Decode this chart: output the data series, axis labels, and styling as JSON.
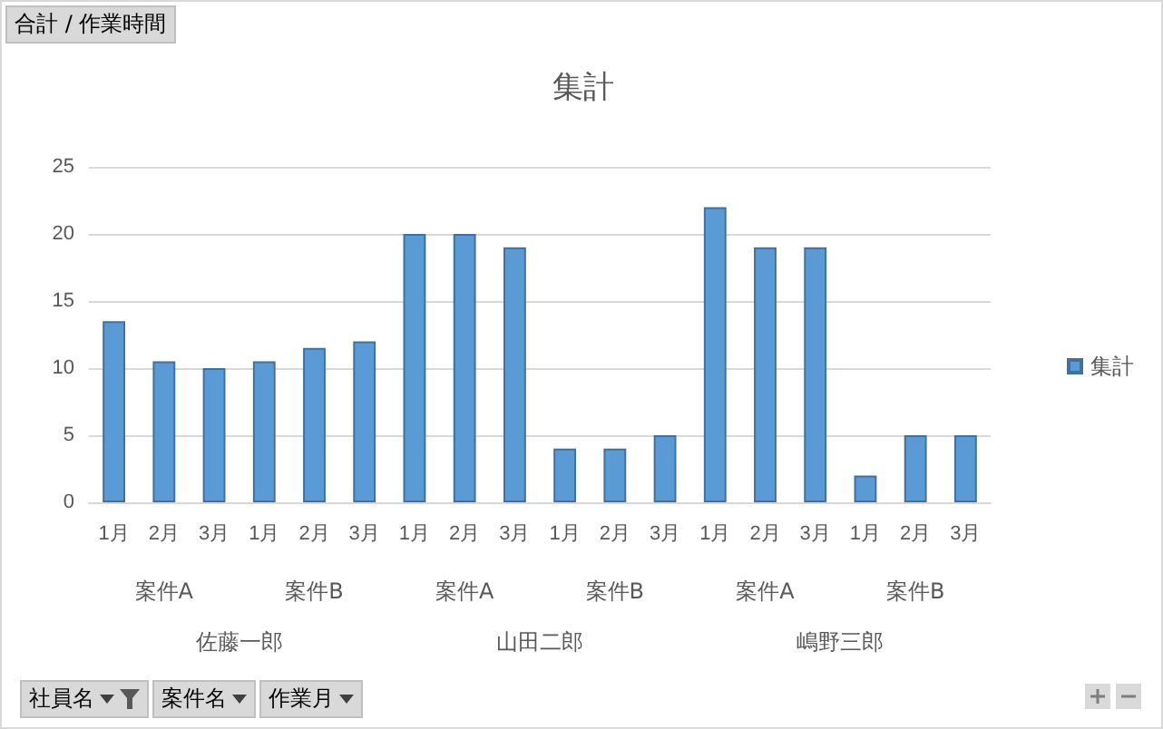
{
  "chart_data": {
    "type": "bar",
    "title": "集計",
    "categories": [
      "1月",
      "2月",
      "3月",
      "1月",
      "2月",
      "3月",
      "1月",
      "2月",
      "3月",
      "1月",
      "2月",
      "3月",
      "1月",
      "2月",
      "3月",
      "1月",
      "2月",
      "3月"
    ],
    "series": [
      {
        "name": "集計",
        "color": "#5b9bd5",
        "values": [
          13.5,
          10.5,
          10,
          10.5,
          11.5,
          12,
          20,
          20,
          19,
          4,
          4,
          5,
          22,
          19,
          19,
          2,
          5,
          5
        ]
      }
    ],
    "ylim": [
      0,
      25
    ],
    "yticks": [
      0,
      5,
      10,
      15,
      20,
      25
    ],
    "grid": "y",
    "legend": "right",
    "annotations": [
      "合計 / 作業時間",
      "案件A",
      "案件B",
      "案件A",
      "案件B",
      "案件A",
      "案件B",
      "佐藤一郎",
      "山田二郎",
      "嶋野三郎",
      "社員名",
      "案件名",
      "作業月"
    ]
  }
}
